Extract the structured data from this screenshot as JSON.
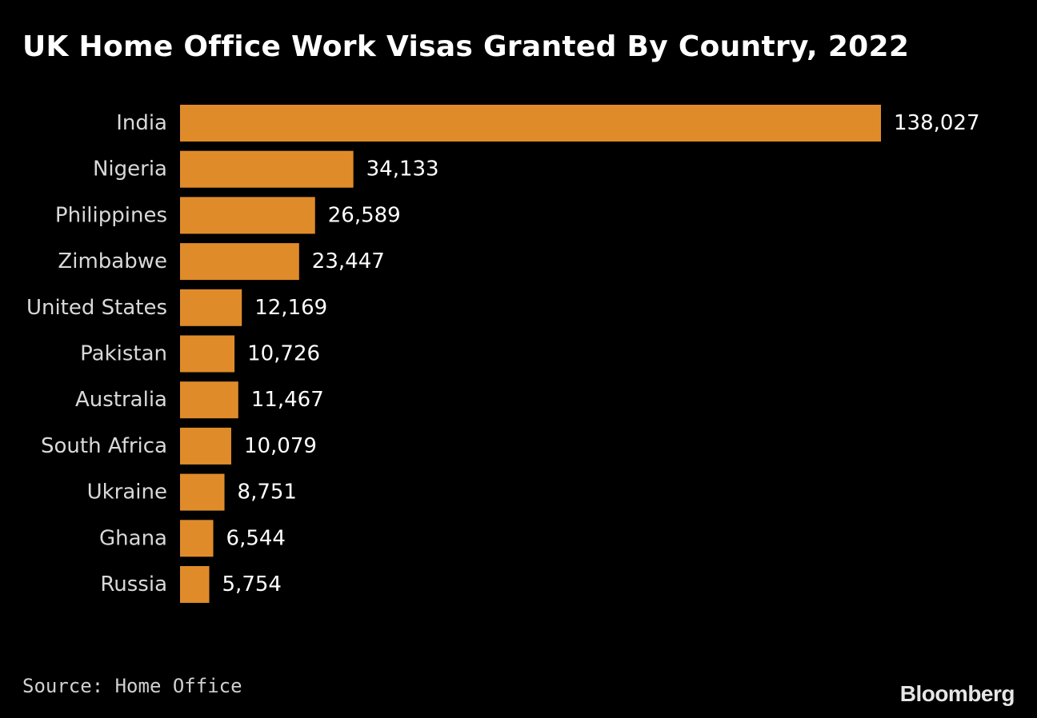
{
  "title": "UK Home Office Work Visas Granted By Country, 2022",
  "source": "Source: Home Office",
  "brand": "Bloomberg",
  "colors": {
    "background": "#000000",
    "bar": "#e08b2a"
  },
  "chart_data": {
    "type": "bar",
    "orientation": "horizontal",
    "title": "UK Home Office Work Visas Granted By Country, 2022",
    "xlabel": "",
    "ylabel": "",
    "grid": false,
    "categories": [
      "India",
      "Nigeria",
      "Philippines",
      "Zimbabwe",
      "United States",
      "Pakistan",
      "Australia",
      "South Africa",
      "Ukraine",
      "Ghana",
      "Russia"
    ],
    "values": [
      138027,
      34133,
      26589,
      23447,
      12169,
      10726,
      11467,
      10079,
      8751,
      6544,
      5754
    ],
    "value_labels": [
      "138,027",
      "34,133",
      "26,589",
      "23,447",
      "12,169",
      "10,726",
      "11,467",
      "10,079",
      "8,751",
      "6,544",
      "5,754"
    ]
  }
}
